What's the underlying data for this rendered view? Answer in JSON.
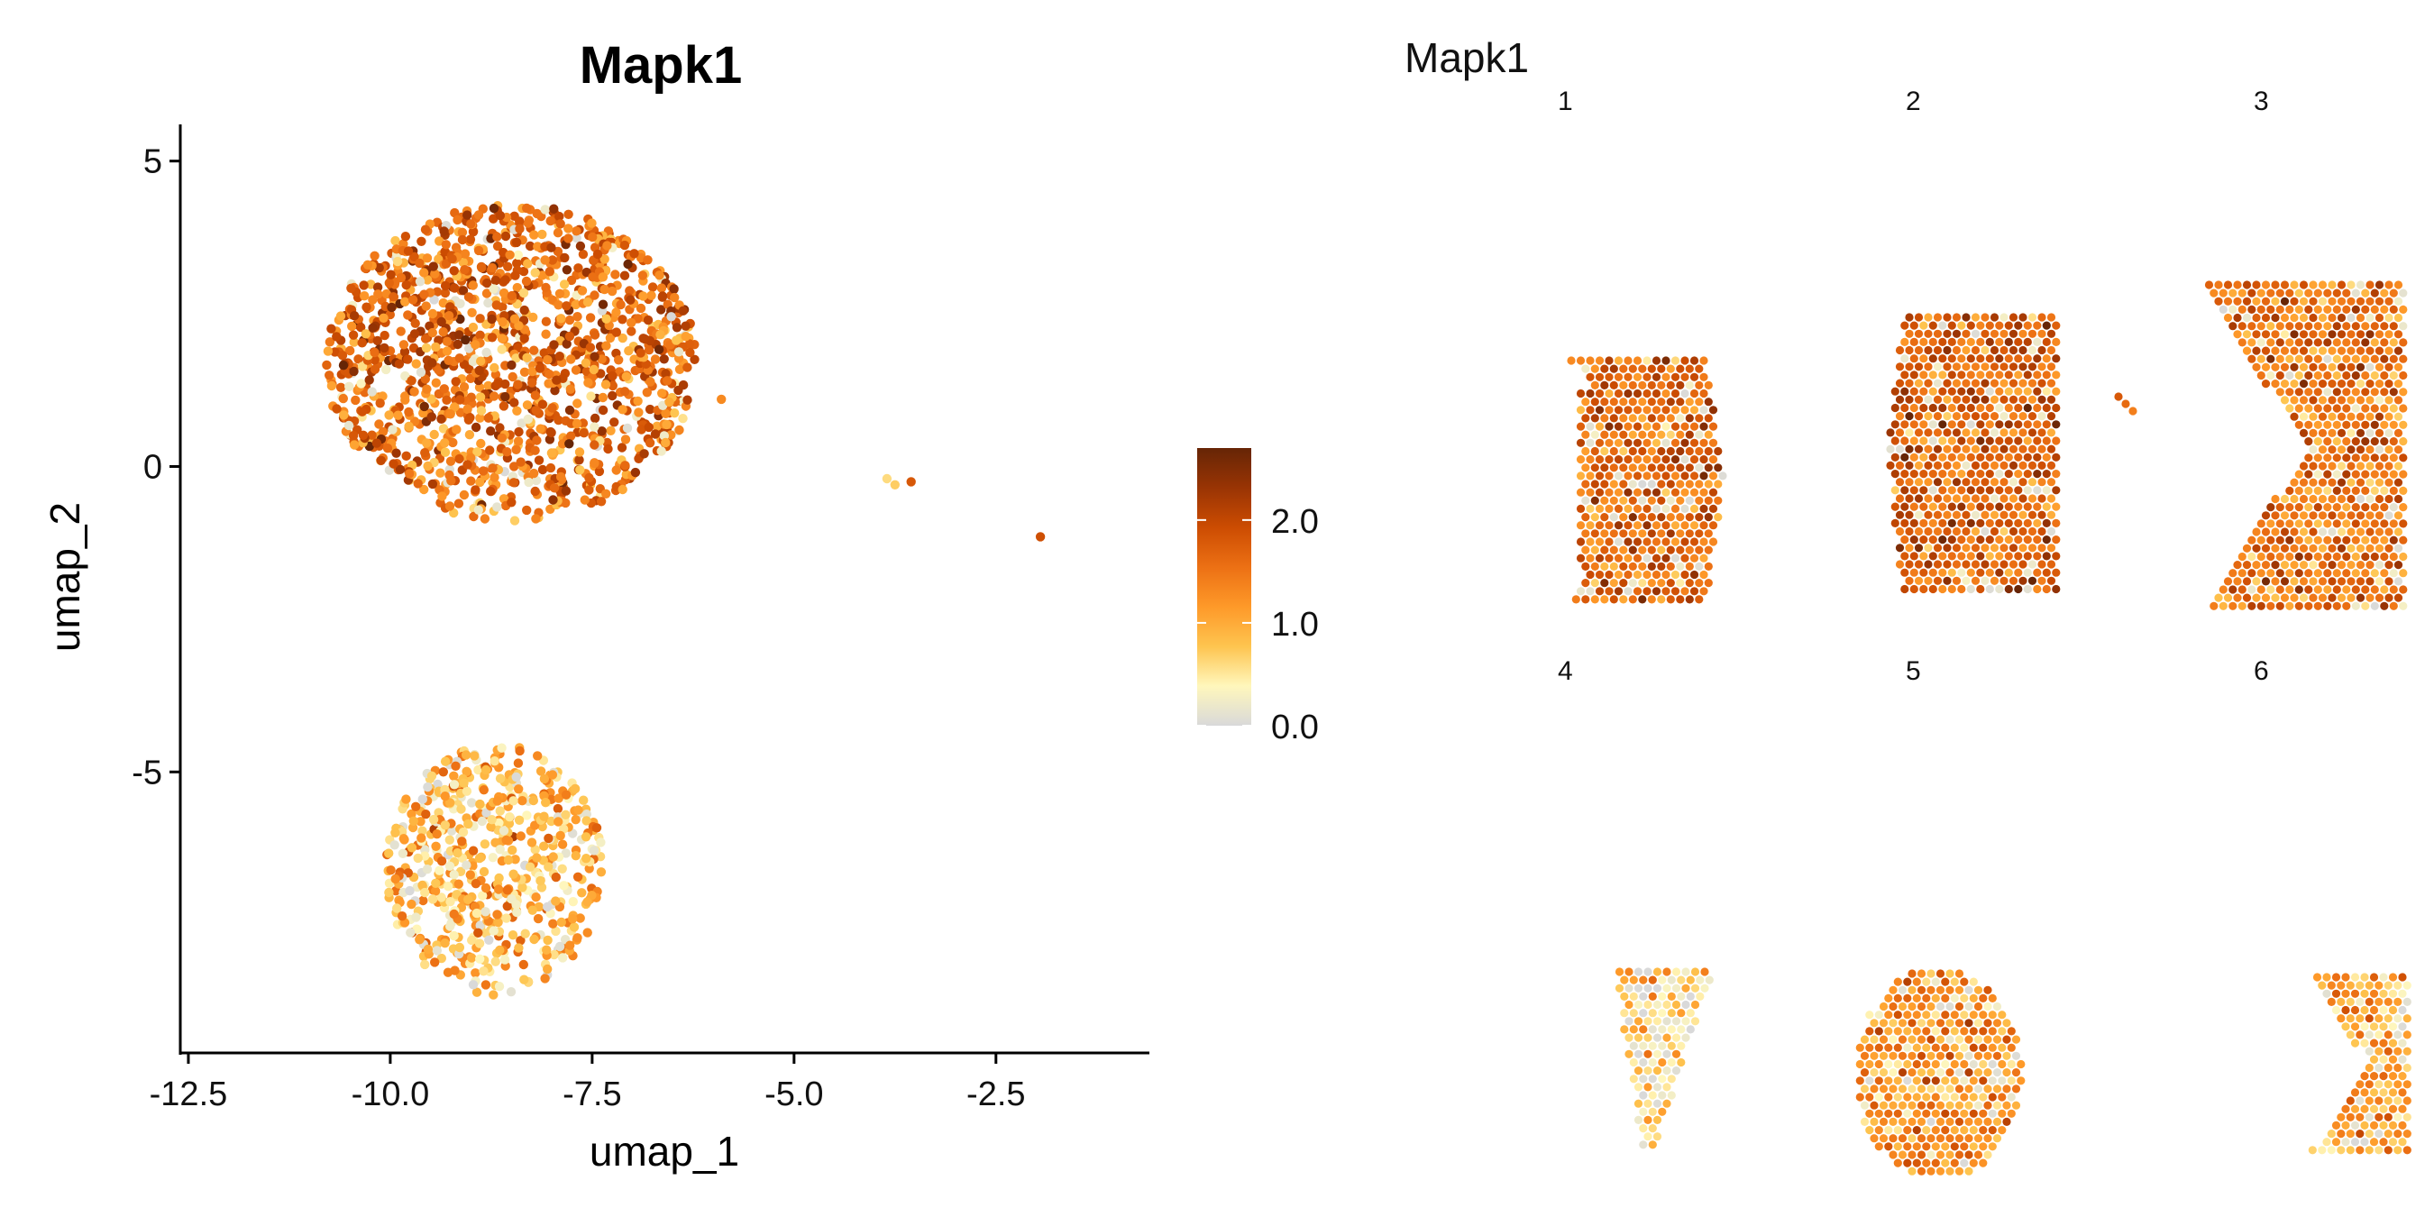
{
  "chart_data": [
    {
      "type": "scatter",
      "title": "Mapk1",
      "xlabel": "umap_1",
      "ylabel": "umap_2",
      "xlim": [
        -12.6,
        -0.6
      ],
      "ylim": [
        -9.6,
        5.6
      ],
      "xticks": [
        -12.5,
        -10.0,
        -7.5,
        -5.0,
        -2.5
      ],
      "xtick_labels": [
        "-12.5",
        "-10.0",
        "-7.5",
        "-5.0",
        "-2.5"
      ],
      "yticks": [
        5,
        0,
        -5
      ],
      "ytick_labels": [
        "5",
        "0",
        "-5"
      ],
      "grid": false,
      "clusters": [
        {
          "center": [
            -8.5,
            1.7
          ],
          "radius_x": 2.3,
          "radius_y": 2.6,
          "expression_mean": 1.6,
          "approx_points": 1400
        },
        {
          "center": [
            -8.7,
            -6.6
          ],
          "radius_x": 1.35,
          "radius_y": 2.05,
          "expression_mean": 0.9,
          "approx_points": 600
        }
      ],
      "outliers": [
        {
          "x": -5.9,
          "y": 1.1,
          "value": 1.3
        },
        {
          "x": -3.85,
          "y": -0.2,
          "value": 0.6
        },
        {
          "x": -3.75,
          "y": -0.3,
          "value": 0.7
        },
        {
          "x": -3.55,
          "y": -0.25,
          "value": 1.8
        },
        {
          "x": -1.95,
          "y": -1.15,
          "value": 1.9
        }
      ]
    },
    {
      "type": "heatmap",
      "title": "Mapk1",
      "panels": [
        {
          "label": "1",
          "expression_mean": 1.6
        },
        {
          "label": "2",
          "expression_mean": 1.7
        },
        {
          "label": "3",
          "expression_mean": 1.5
        },
        {
          "label": "4",
          "expression_mean": 0.6
        },
        {
          "label": "5",
          "expression_mean": 1.2
        },
        {
          "label": "6",
          "expression_mean": 1.0
        }
      ]
    }
  ],
  "legend": {
    "min": 0.0,
    "max": 2.7,
    "ticks": [
      2.0,
      1.0,
      0.0
    ],
    "tick_labels": [
      "2.0",
      "1.0",
      "0.0"
    ],
    "colors": [
      "#d9d9d9",
      "#fff7bc",
      "#fec44f",
      "#fe9929",
      "#ec7014",
      "#cc4c02",
      "#993404",
      "#662506"
    ]
  }
}
